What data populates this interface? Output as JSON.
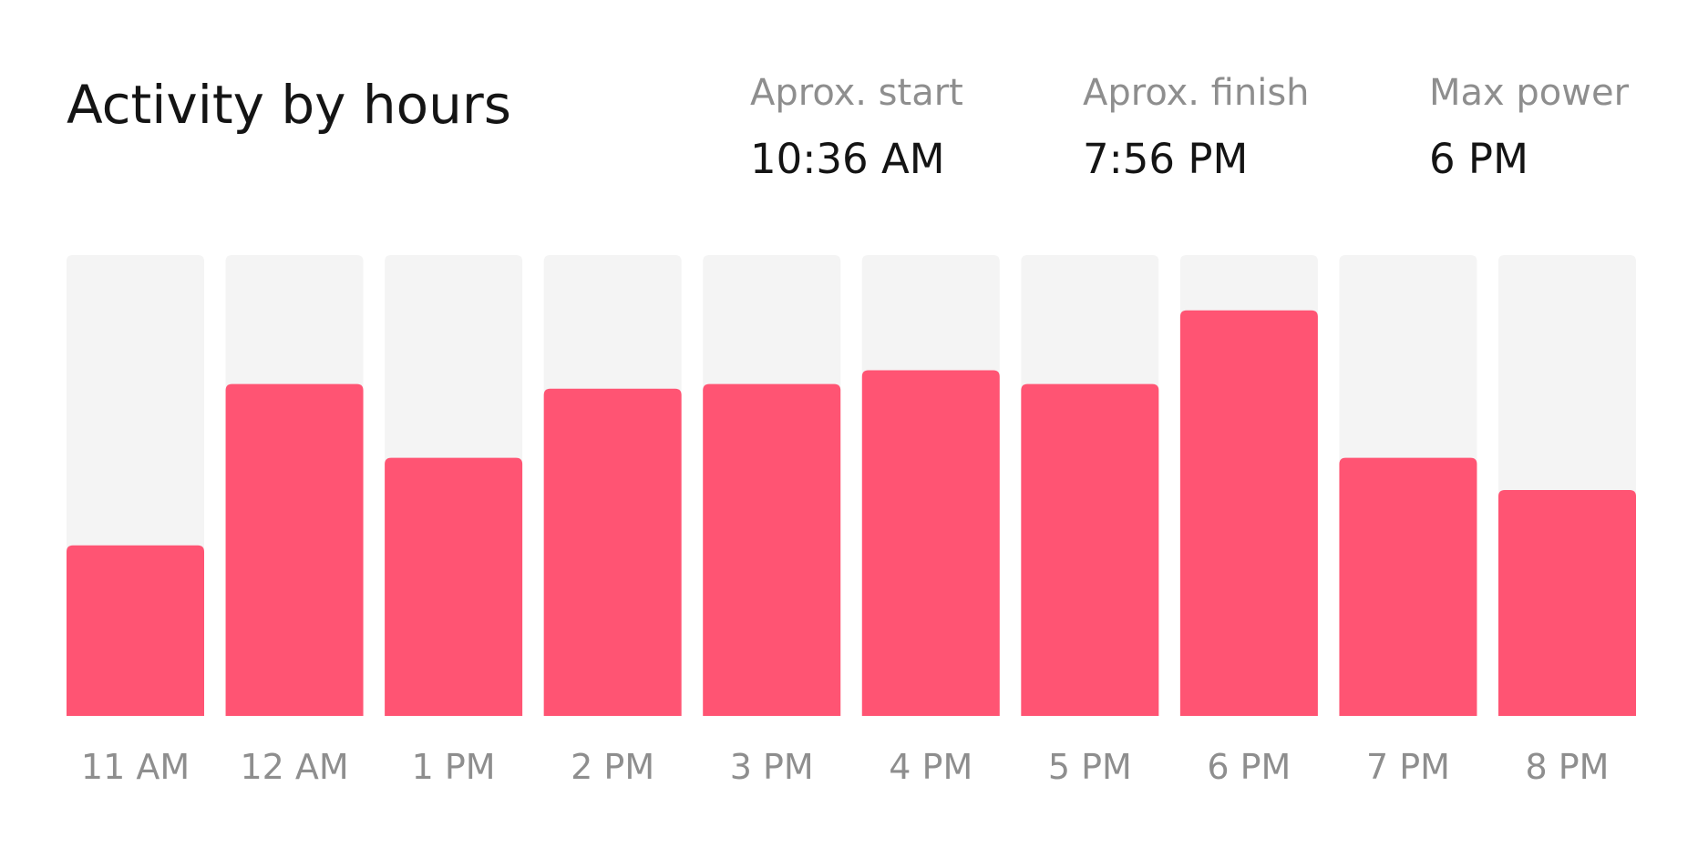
{
  "header": {
    "title": "Activity by hours",
    "stats": [
      {
        "label": "Aprox. start",
        "value": "10:36 AM"
      },
      {
        "label": "Aprox. finish",
        "value": "7:56 PM"
      },
      {
        "label": "Max power",
        "value": "6 PM"
      }
    ]
  },
  "colors": {
    "bar": "#ff5473",
    "track": "#f4f4f4",
    "label": "#8e8e8e",
    "text": "#141414"
  },
  "chart_data": {
    "type": "bar",
    "categories": [
      "11 AM",
      "12 AM",
      "1 PM",
      "2 PM",
      "3 PM",
      "4 PM",
      "5 PM",
      "6 PM",
      "7 PM",
      "8 PM"
    ],
    "values": [
      37,
      72,
      56,
      71,
      72,
      75,
      72,
      88,
      56,
      49
    ],
    "ylim": [
      0,
      100
    ],
    "grid": false,
    "legend": "none"
  }
}
